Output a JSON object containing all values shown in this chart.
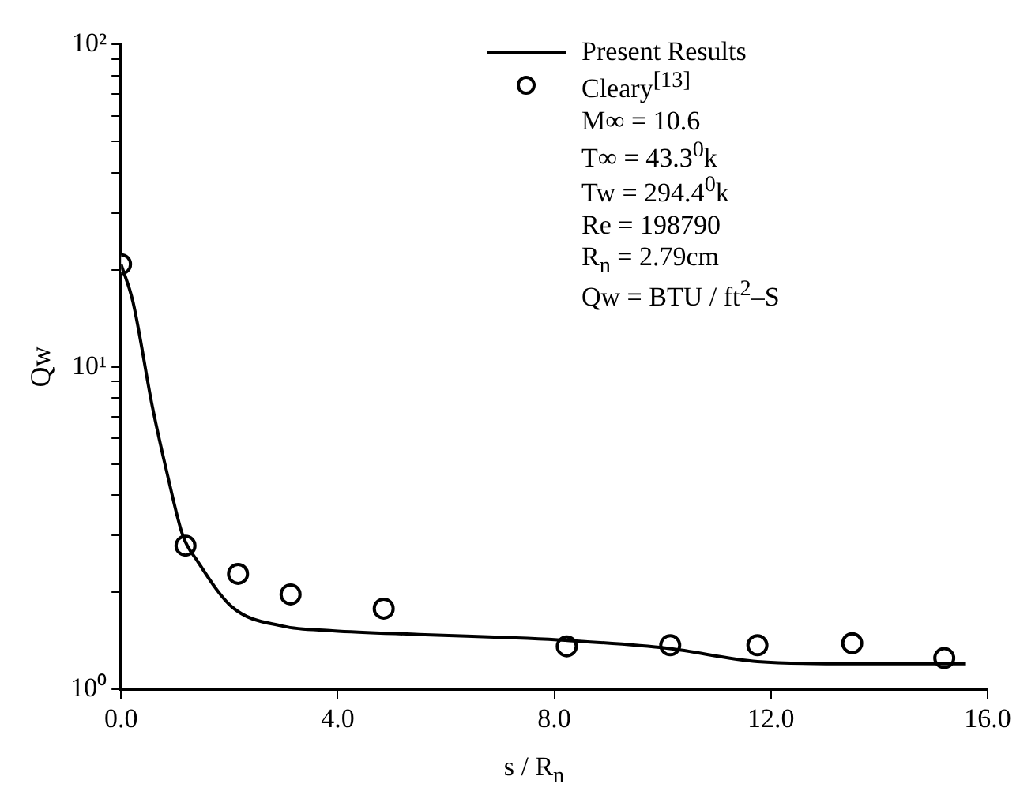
{
  "chart_data": {
    "type": "line",
    "xlabel": "s / R$_{n}$",
    "ylabel": "Qw",
    "log": "y",
    "grid": false,
    "legend": "top right",
    "xlim": [
      0,
      16
    ],
    "xticks": [
      {
        "value": 0,
        "label": "0.0"
      },
      {
        "value": 4,
        "label": "4.0"
      },
      {
        "value": 8,
        "label": "8.0"
      },
      {
        "value": 12,
        "label": "12.0"
      },
      {
        "value": 16,
        "label": "16.0"
      }
    ],
    "ylim": [
      1,
      100
    ],
    "yticks": [
      {
        "value": 1,
        "label": "10⁰"
      },
      {
        "value": 2,
        "label": null
      },
      {
        "value": 3,
        "label": null
      },
      {
        "value": 4,
        "label": null
      },
      {
        "value": 5,
        "label": null
      },
      {
        "value": 6,
        "label": null
      },
      {
        "value": 7,
        "label": null
      },
      {
        "value": 8,
        "label": null
      },
      {
        "value": 9,
        "label": null
      },
      {
        "value": 10,
        "label": "10¹"
      },
      {
        "value": 20,
        "label": null
      },
      {
        "value": 30,
        "label": null
      },
      {
        "value": 40,
        "label": null
      },
      {
        "value": 50,
        "label": null
      },
      {
        "value": 60,
        "label": null
      },
      {
        "value": 70,
        "label": null
      },
      {
        "value": 80,
        "label": null
      },
      {
        "value": 90,
        "label": null
      },
      {
        "value": 100,
        "label": "10²"
      }
    ],
    "annotations": [
      "M∞ = 10.6",
      "T∞ = 43.3$^{0}$k",
      "Tw = 294.4$^{0}$k",
      "Re = 198790",
      "R$_{n}$ = 2.79cm",
      "Qw = BTU / ft$^{2}$–S"
    ],
    "series": [
      {
        "name": "Present Results",
        "type": "line",
        "color": "#000000",
        "marker": "none",
        "line_style": "solid",
        "x": [
          0,
          0.22,
          0.58,
          0.86,
          1.14,
          1.41,
          2.05,
          2.99,
          3.9,
          5.5,
          7.5,
          8.2,
          10.1,
          11.75,
          13.5,
          15.6
        ],
        "values": [
          20.8,
          15.9,
          7.5,
          4.6,
          3.0,
          2.5,
          1.8,
          1.57,
          1.52,
          1.48,
          1.44,
          1.42,
          1.34,
          1.22,
          1.2,
          1.2
        ]
      },
      {
        "name": "Cleary$^{[13]}$",
        "type": "scatter",
        "color": "#000000",
        "marker": "circle",
        "x": [
          0,
          1.19,
          2.16,
          3.13,
          4.85,
          8.23,
          10.14,
          11.75,
          13.5,
          15.2
        ],
        "values": [
          20.8,
          2.79,
          2.28,
          1.97,
          1.78,
          1.36,
          1.37,
          1.37,
          1.39,
          1.25
        ]
      }
    ]
  }
}
